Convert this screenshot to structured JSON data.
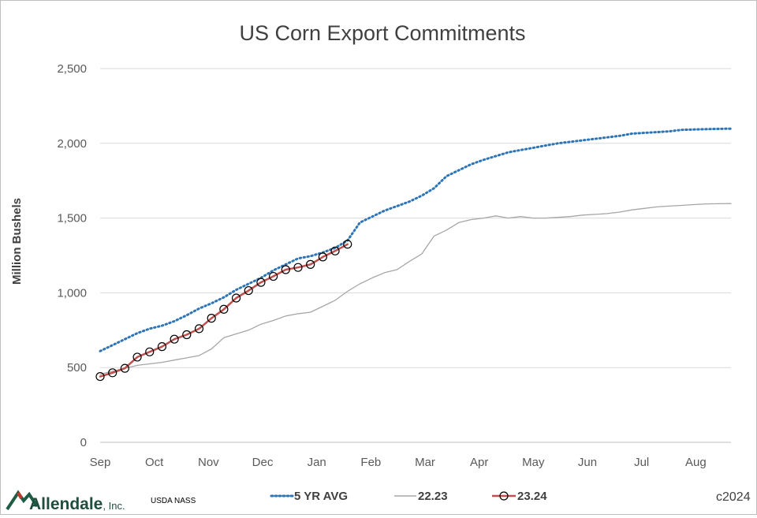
{
  "chart_data": {
    "type": "line",
    "title": "US Corn Export Commitments",
    "ylabel": "Million Bushels",
    "ylim": [
      0,
      2500
    ],
    "yticks": [
      0,
      500,
      1000,
      1500,
      2000,
      2500
    ],
    "ytick_labels": [
      "0",
      "500",
      "1,000",
      "1,500",
      "2,000",
      "2,500"
    ],
    "x_month_labels": [
      "Sep",
      "Oct",
      "Nov",
      "Dec",
      "Jan",
      "Feb",
      "Mar",
      "Apr",
      "May",
      "Jun",
      "Jul",
      "Aug"
    ],
    "x_unit": "weeks since start of marketing year (Sep)",
    "grid": "horizontal",
    "legend_position": "bottom",
    "series": [
      {
        "name": "5 YR AVG",
        "style": "dotted",
        "color": "#2e75b6",
        "x": [
          0,
          1,
          2,
          3,
          4,
          5,
          6,
          7,
          8,
          9,
          10,
          11,
          12,
          13,
          14,
          15,
          16,
          17,
          18,
          19,
          20,
          21,
          22,
          23,
          24,
          25,
          26,
          27,
          28,
          29,
          30,
          31,
          32,
          33,
          34,
          35,
          36,
          37,
          38,
          39,
          40,
          41,
          42,
          43,
          44,
          45,
          46,
          47,
          48,
          49,
          50,
          51
        ],
        "values": [
          610,
          650,
          690,
          730,
          760,
          780,
          810,
          850,
          895,
          930,
          970,
          1020,
          1060,
          1100,
          1150,
          1190,
          1230,
          1245,
          1270,
          1300,
          1350,
          1470,
          1510,
          1550,
          1580,
          1610,
          1650,
          1700,
          1780,
          1820,
          1860,
          1890,
          1915,
          1940,
          1955,
          1970,
          1985,
          2000,
          2010,
          2020,
          2030,
          2040,
          2050,
          2065,
          2070,
          2075,
          2080,
          2090,
          2093,
          2095,
          2097,
          2098
        ]
      },
      {
        "name": "22.23",
        "style": "solid-thin",
        "color": "#a6a6a6",
        "x": [
          0,
          1,
          2,
          3,
          4,
          5,
          6,
          7,
          8,
          9,
          10,
          11,
          12,
          13,
          14,
          15,
          16,
          17,
          18,
          19,
          20,
          21,
          22,
          23,
          24,
          25,
          26,
          27,
          28,
          29,
          30,
          31,
          32,
          33,
          34,
          35,
          36,
          37,
          38,
          39,
          40,
          41,
          42,
          43,
          44,
          45,
          46,
          47,
          48,
          49,
          50,
          51
        ],
        "values": [
          455,
          475,
          495,
          515,
          525,
          535,
          550,
          565,
          580,
          625,
          700,
          725,
          750,
          790,
          815,
          845,
          860,
          870,
          910,
          950,
          1010,
          1060,
          1100,
          1135,
          1155,
          1210,
          1260,
          1380,
          1420,
          1470,
          1490,
          1500,
          1515,
          1500,
          1510,
          1500,
          1500,
          1505,
          1510,
          1520,
          1525,
          1530,
          1540,
          1555,
          1565,
          1575,
          1580,
          1585,
          1590,
          1595,
          1596,
          1597
        ]
      },
      {
        "name": "23.24",
        "style": "solid-markers",
        "color": "#c0504d",
        "x": [
          0,
          1,
          2,
          3,
          4,
          5,
          6,
          7,
          8,
          9,
          10,
          11,
          12,
          13,
          14,
          15,
          16,
          17,
          18,
          19,
          20
        ],
        "values": [
          440,
          465,
          495,
          570,
          605,
          640,
          690,
          720,
          760,
          830,
          890,
          965,
          1015,
          1070,
          1110,
          1155,
          1170,
          1190,
          1240,
          1280,
          1325
        ]
      }
    ]
  },
  "footer": {
    "brand": "Allendale",
    "brand_suffix": ", Inc.",
    "source": "USDA NASS",
    "copyright": "c2024"
  }
}
